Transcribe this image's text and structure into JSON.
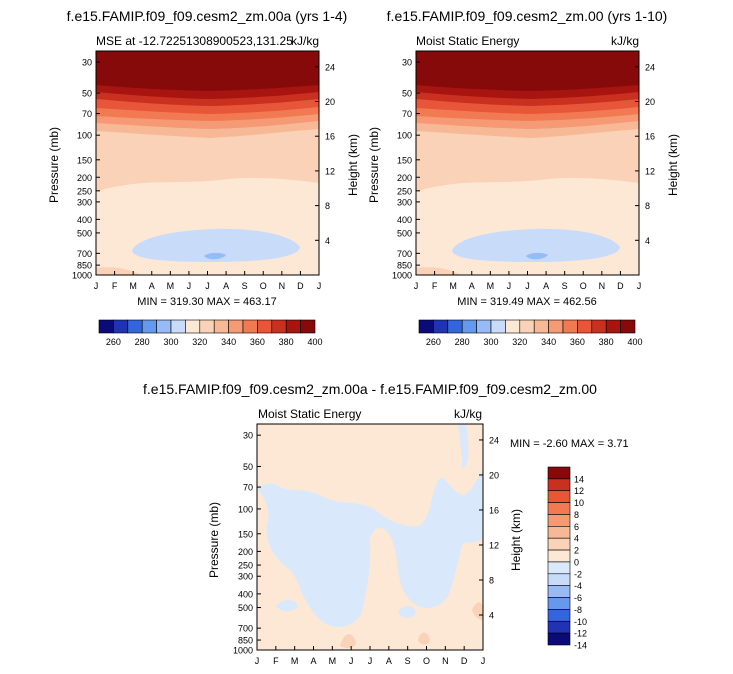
{
  "colors": {
    "cmap_abs": [
      "#0a0a78",
      "#1f33b3",
      "#3366dd",
      "#6699ee",
      "#99bbf5",
      "#c8dcfa",
      "#fde8d6",
      "#fad2b8",
      "#f7b896",
      "#f59a74",
      "#f27a52",
      "#e8563a",
      "#c93020",
      "#a81410",
      "#870a0a"
    ],
    "cmap_diff": [
      "#0a0a78",
      "#1f33b3",
      "#3366dd",
      "#6699ee",
      "#99bbf5",
      "#c8dcfa",
      "#d9e9fb",
      "#fde8d6",
      "#fad2b8",
      "#f7b896",
      "#f59a74",
      "#f27a52",
      "#e8563a",
      "#c93020",
      "#870a0a"
    ]
  },
  "chart_data": [
    {
      "type": "heatmap",
      "id": "panel1",
      "title": "f.e15.FAMIP.f09_f09.cesm2_zm.00a (yrs 1-4)",
      "left_label": "MSE at -12.72251308900523,131.25",
      "right_label": "kJ/kg",
      "ylabel": "Pressure (mb)",
      "y2label": "Height (km)",
      "x_ticks": [
        "J",
        "F",
        "M",
        "A",
        "M",
        "J",
        "J",
        "A",
        "S",
        "O",
        "N",
        "D",
        "J"
      ],
      "y_ticks": [
        "30",
        "50",
        "70",
        "100",
        "150",
        "200",
        "250",
        "300",
        "400",
        "500",
        "700",
        "850",
        "1000"
      ],
      "y2_ticks": [
        "24",
        "20",
        "16",
        "12",
        "8",
        "4"
      ],
      "stats": "MIN = 319.30 MAX = 463.17",
      "colorbar_ticks": [
        "260",
        "280",
        "300",
        "320",
        "340",
        "360",
        "380",
        "400"
      ],
      "value_range_kJkg": [
        319.3,
        463.17
      ]
    },
    {
      "type": "heatmap",
      "id": "panel2",
      "title": "f.e15.FAMIP.f09_f09.cesm2_zm.00 (yrs 1-10)",
      "left_label": "Moist Static Energy",
      "right_label": "kJ/kg",
      "ylabel": "Pressure (mb)",
      "y2label": "Height (km)",
      "x_ticks": [
        "J",
        "F",
        "M",
        "A",
        "M",
        "J",
        "J",
        "A",
        "S",
        "O",
        "N",
        "D",
        "J"
      ],
      "y_ticks": [
        "30",
        "50",
        "70",
        "100",
        "150",
        "200",
        "250",
        "300",
        "400",
        "500",
        "700",
        "850",
        "1000"
      ],
      "y2_ticks": [
        "24",
        "20",
        "16",
        "12",
        "8",
        "4"
      ],
      "stats": "MIN = 319.49 MAX = 462.56",
      "colorbar_ticks": [
        "260",
        "280",
        "300",
        "320",
        "340",
        "360",
        "380",
        "400"
      ],
      "value_range_kJkg": [
        319.49,
        462.56
      ]
    },
    {
      "type": "heatmap",
      "id": "panel3",
      "title": "f.e15.FAMIP.f09_f09.cesm2_zm.00a - f.e15.FAMIP.f09_f09.cesm2_zm.00",
      "left_label": "Moist Static Energy",
      "right_label": "kJ/kg",
      "ylabel": "Pressure (mb)",
      "y2label": "Height (km)",
      "x_ticks": [
        "J",
        "F",
        "M",
        "A",
        "M",
        "J",
        "J",
        "A",
        "S",
        "O",
        "N",
        "D",
        "J"
      ],
      "y_ticks": [
        "30",
        "50",
        "70",
        "100",
        "150",
        "200",
        "250",
        "300",
        "400",
        "500",
        "700",
        "850",
        "1000"
      ],
      "y2_ticks": [
        "24",
        "20",
        "16",
        "12",
        "8",
        "4"
      ],
      "stats": "MIN =  -2.60 MAX =  3.71",
      "colorbar_ticks": [
        "14",
        "12",
        "10",
        "8",
        "6",
        "4",
        "2",
        "0",
        "-2",
        "-4",
        "-6",
        "-8",
        "-10",
        "-12",
        "-14"
      ],
      "value_range_kJkg": [
        -2.6,
        3.71
      ]
    }
  ]
}
